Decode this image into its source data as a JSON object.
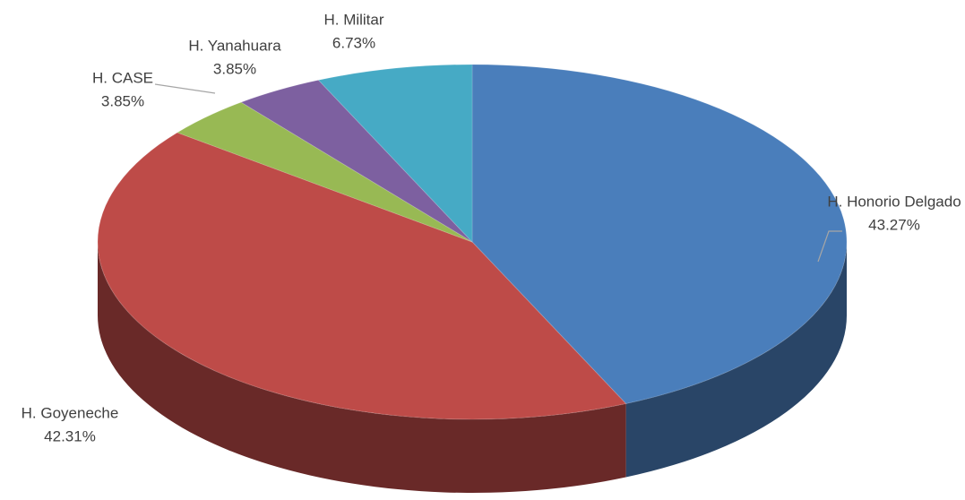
{
  "chart_data": {
    "type": "pie",
    "categories": [
      "H. Honorio Delgado",
      "H. Goyeneche",
      "H. CASE",
      "H. Yanahuara",
      "H. Militar"
    ],
    "values": [
      43.27,
      42.31,
      3.85,
      3.85,
      6.73
    ],
    "value_labels": [
      "43.27%",
      "42.31%",
      "3.85%",
      "3.85%",
      "6.73%"
    ],
    "colors": [
      "#4a7ebb",
      "#be4b48",
      "#98b954",
      "#7d60a0",
      "#46aac5"
    ]
  }
}
